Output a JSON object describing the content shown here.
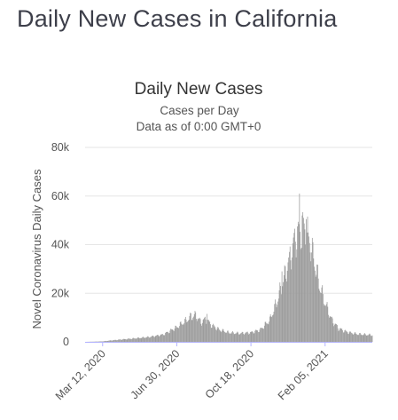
{
  "page": {
    "title": "Daily New Cases in California"
  },
  "chart_data": {
    "type": "bar",
    "title": "Daily New Cases",
    "subtitle": "Cases per Day",
    "subtitle2": "Data as of 0:00 GMT+0",
    "xlabel": "",
    "ylabel": "Novel Coronavirus Daily Cases",
    "ylim": [
      0,
      80000
    ],
    "yticks": [
      0,
      20000,
      40000,
      60000,
      80000
    ],
    "ytick_labels": [
      "0",
      "20k",
      "40k",
      "60k",
      "80k"
    ],
    "x_start": "2020-02-15",
    "x_end": "2021-04-16",
    "xtick_dates": [
      "2020-03-12",
      "2020-06-30",
      "2020-10-18",
      "2021-02-05"
    ],
    "xtick_labels": [
      "Mar 12, 2020",
      "Jun 30, 2020",
      "Oct 18, 2020",
      "Feb 05, 2021"
    ],
    "grid": true,
    "bar_color": "#9b9b9b",
    "axis_color": "#b3b3ff",
    "grid_color": "#e6e6e6",
    "series": [
      {
        "points": [
          [
            "2020-02-15",
            0
          ],
          [
            "2020-03-01",
            100
          ],
          [
            "2020-03-12",
            200
          ],
          [
            "2020-03-25",
            600
          ],
          [
            "2020-04-10",
            1000
          ],
          [
            "2020-05-01",
            1500
          ],
          [
            "2020-05-20",
            2000
          ],
          [
            "2020-06-10",
            3000
          ],
          [
            "2020-06-30",
            6000
          ],
          [
            "2020-07-10",
            8000
          ],
          [
            "2020-07-20",
            10000
          ],
          [
            "2020-07-28",
            11000
          ],
          [
            "2020-08-05",
            8000
          ],
          [
            "2020-08-12",
            9500
          ],
          [
            "2020-08-20",
            7000
          ],
          [
            "2020-09-01",
            5000
          ],
          [
            "2020-09-15",
            3800
          ],
          [
            "2020-10-01",
            3500
          ],
          [
            "2020-10-18",
            3800
          ],
          [
            "2020-11-01",
            5000
          ],
          [
            "2020-11-15",
            9000
          ],
          [
            "2020-11-25",
            16000
          ],
          [
            "2020-12-05",
            25000
          ],
          [
            "2020-12-15",
            35000
          ],
          [
            "2020-12-22",
            42000
          ],
          [
            "2020-12-28",
            45000
          ],
          [
            "2021-01-05",
            47000
          ],
          [
            "2021-01-12",
            43000
          ],
          [
            "2021-01-20",
            33000
          ],
          [
            "2021-01-28",
            23000
          ],
          [
            "2021-02-05",
            16000
          ],
          [
            "2021-02-15",
            9000
          ],
          [
            "2021-02-25",
            5500
          ],
          [
            "2021-03-10",
            4000
          ],
          [
            "2021-03-25",
            3200
          ],
          [
            "2021-04-16",
            2800
          ]
        ],
        "spikes": [
          [
            "2020-07-21",
            11800
          ],
          [
            "2020-08-14",
            11500
          ],
          [
            "2020-12-03",
            29000
          ],
          [
            "2020-12-14",
            37000
          ],
          [
            "2020-12-19",
            40500
          ],
          [
            "2020-12-26",
            47500
          ],
          [
            "2020-12-29",
            61000
          ],
          [
            "2021-01-02",
            52000
          ],
          [
            "2021-01-04",
            51000
          ],
          [
            "2021-01-08",
            50500
          ],
          [
            "2021-01-11",
            45000
          ]
        ]
      }
    ]
  }
}
